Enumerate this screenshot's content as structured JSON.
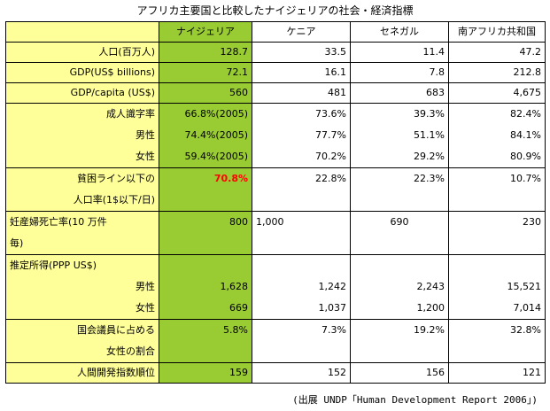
{
  "title": "アフリカ主要国と比較したナイジェリアの社会・経済指標",
  "headers": [
    "",
    "ナイジェリア",
    "ケニア",
    "セネガル",
    "南アフリカ共和国"
  ],
  "rows": {
    "population": {
      "label": "人口(百万人)",
      "v": [
        "128.7",
        "33.5",
        "11.4",
        "47.2"
      ]
    },
    "gdp": {
      "label": "GDP(US$ billions)",
      "v": [
        "72.1",
        "16.1",
        "7.8",
        "212.8"
      ]
    },
    "gdp_capita": {
      "label": "GDP/capita (US$)",
      "v": [
        "560",
        "481",
        "683",
        "4,675"
      ]
    },
    "literacy": {
      "label": "成人識字率",
      "v": [
        "66.8%(2005)",
        "73.6%",
        "39.3%",
        "82.4%"
      ]
    },
    "literacy_male": {
      "label": "男性",
      "v": [
        "74.4%(2005)",
        "77.7%",
        "51.1%",
        "84.1%"
      ]
    },
    "literacy_female": {
      "label": "女性",
      "v": [
        "59.4%(2005)",
        "70.2%",
        "29.2%",
        "80.9%"
      ]
    },
    "poverty": {
      "label1": "貧困ライン以下の",
      "label2": "人口率(1$以下/日)",
      "v": [
        "70.8%",
        "22.8%",
        "22.3%",
        "10.7%"
      ]
    },
    "maternal": {
      "label1": "妊産婦死亡率(10 万件",
      "label2": "毎)",
      "v": [
        "800",
        "1,000",
        "690",
        "230"
      ]
    },
    "income": {
      "label": "推定所得(PPP US$)"
    },
    "income_male": {
      "label": "男性",
      "v": [
        "1,628",
        "1,242",
        "2,243",
        "15,521"
      ]
    },
    "income_female": {
      "label": "女性",
      "v": [
        "669",
        "1,037",
        "1,200",
        "7,014"
      ]
    },
    "parliament": {
      "label1": "国会議員に占める",
      "label2": "女性の割合",
      "v": [
        "5.8%",
        "7.3%",
        "19.2%",
        "32.8%"
      ]
    },
    "hdi": {
      "label": "人間開発指数順位",
      "v": [
        "159",
        "152",
        "156",
        "121"
      ]
    }
  },
  "footer": "(出展 UNDP「Human Development Report 2006」)"
}
